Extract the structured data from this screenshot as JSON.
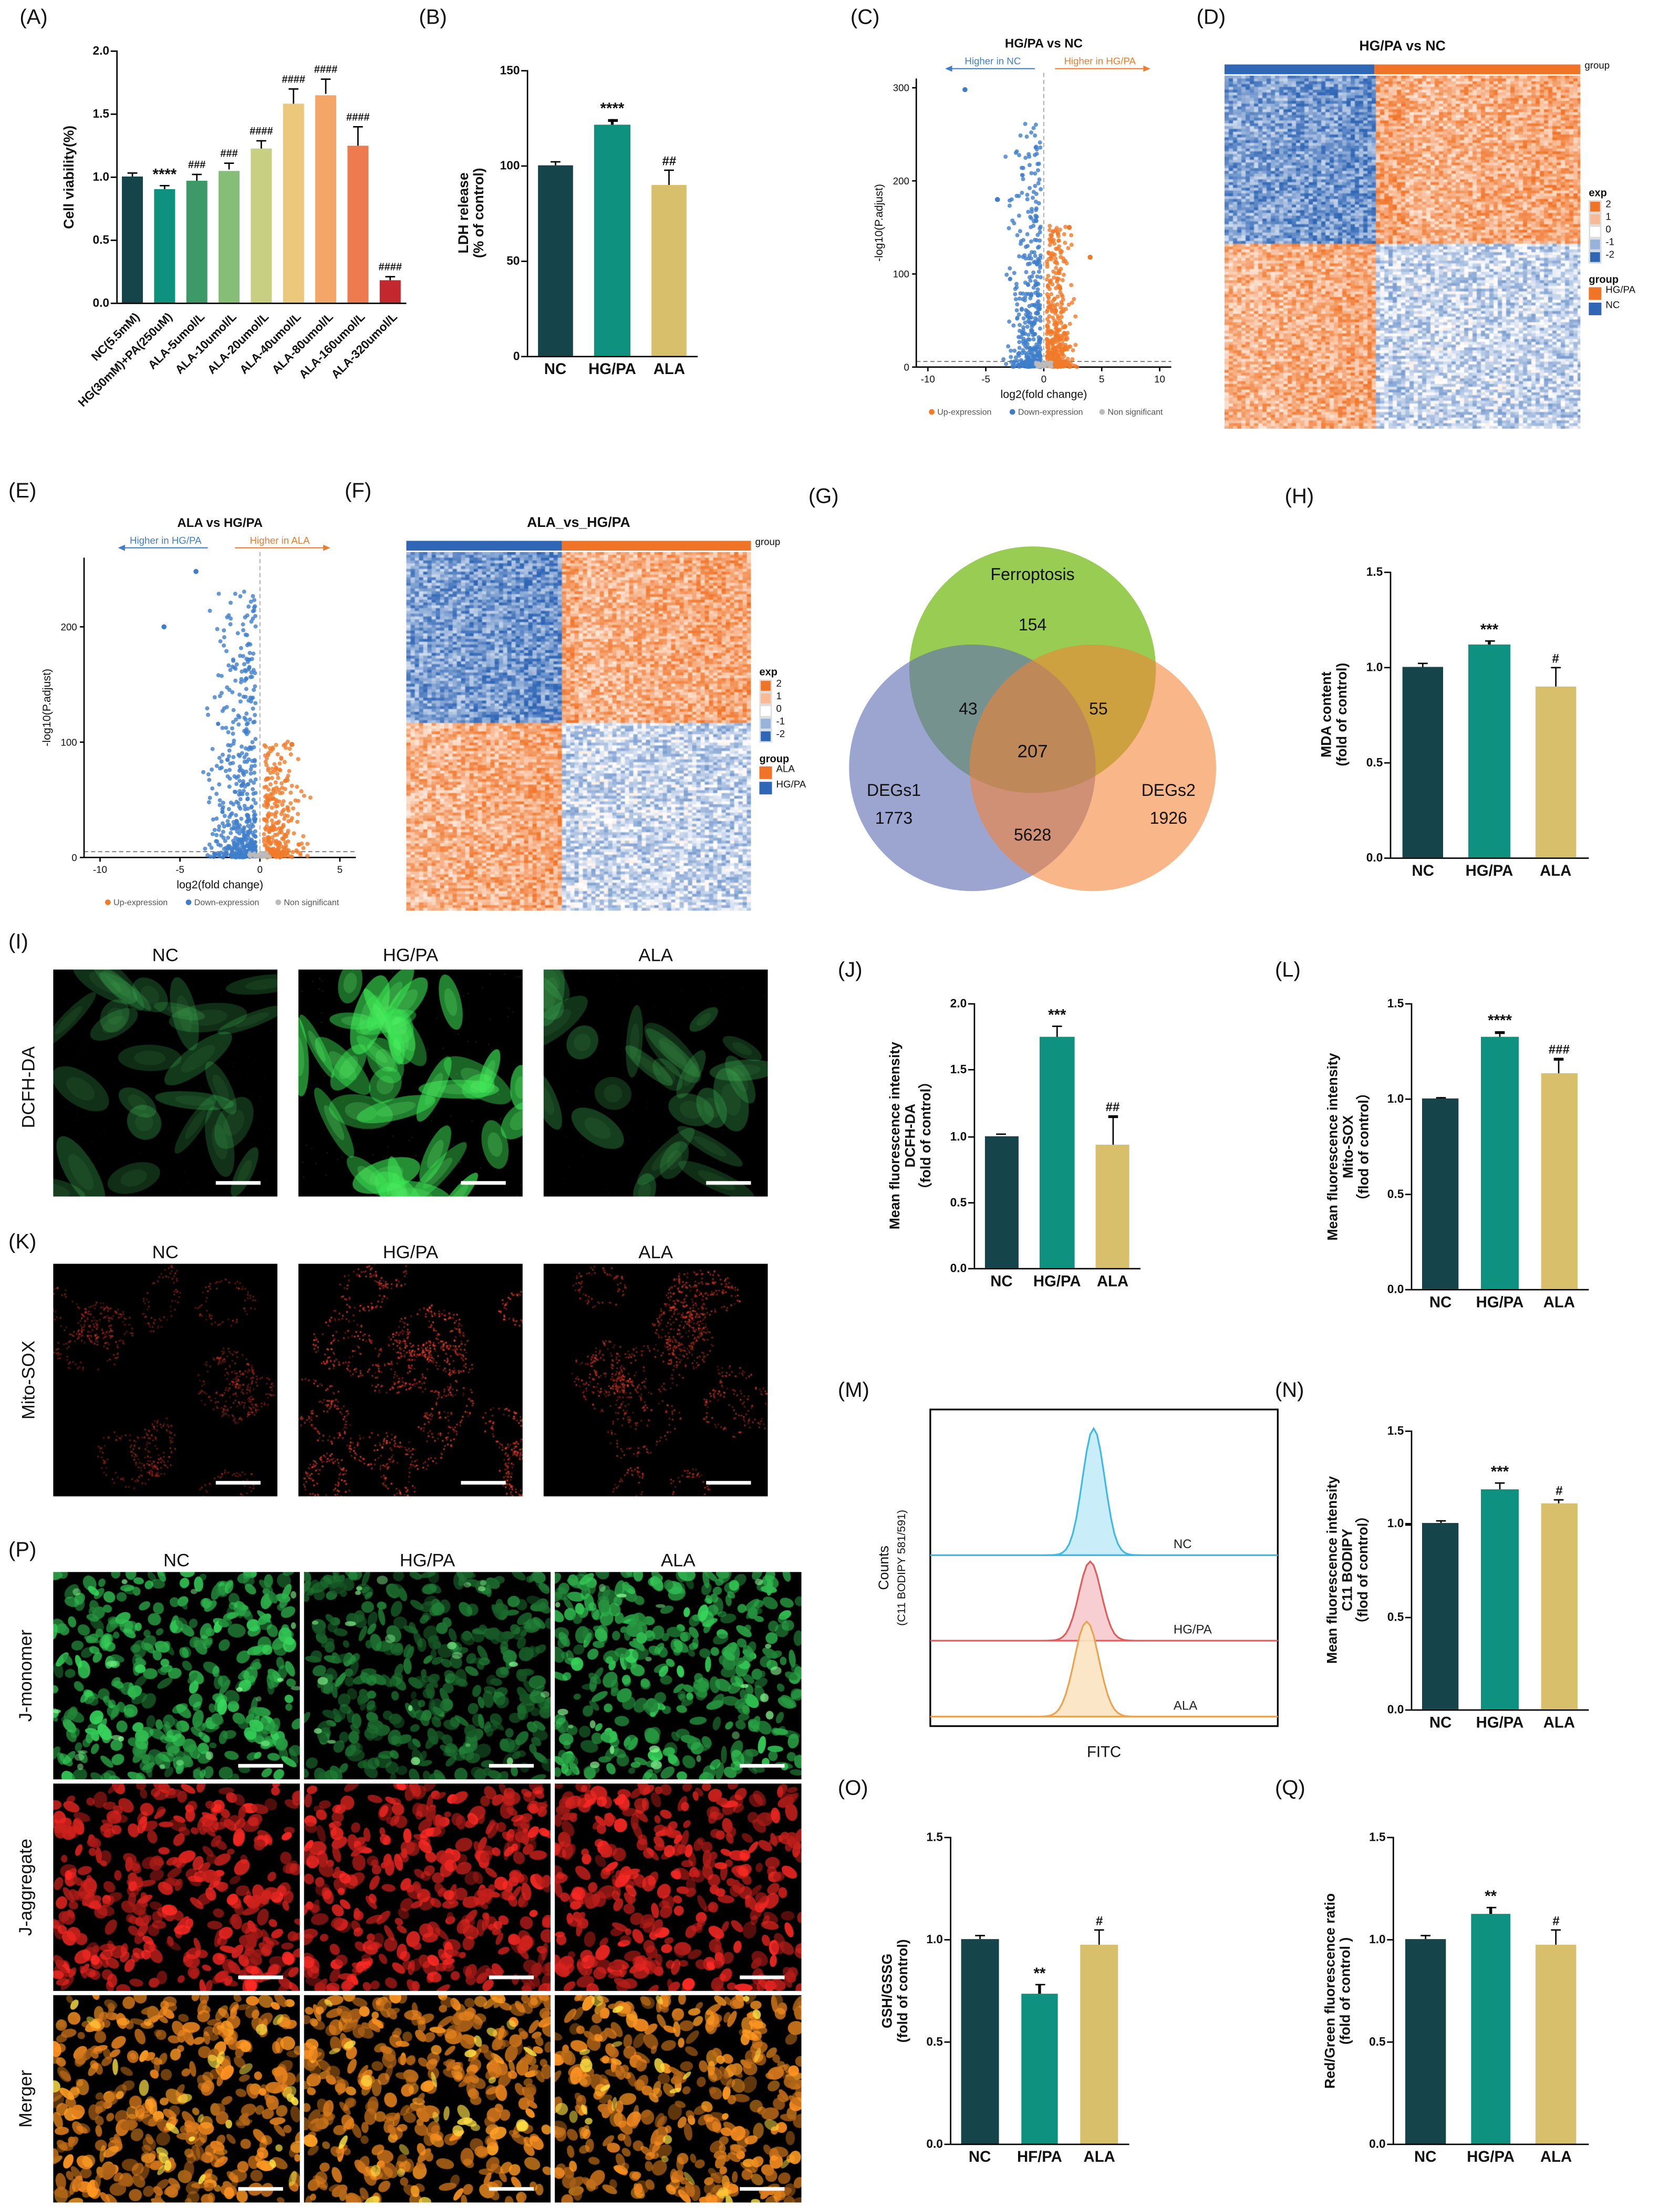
{
  "panel_labels": {
    "A": "(A)",
    "B": "(B)",
    "C": "(C)",
    "D": "(D)",
    "E": "(E)",
    "F": "(F)",
    "G": "(G)",
    "H": "(H)",
    "I": "(I)",
    "J": "(J)",
    "K": "(K)",
    "L": "(L)",
    "M": "(M)",
    "N": "(N)",
    "O": "(O)",
    "P": "(P)",
    "Q": "(Q)"
  },
  "colors": {
    "nc_bar": "#15454b",
    "hgpa_bar": "#0f9180",
    "ala_bar": "#d8bf6b",
    "up": "#f07b2a",
    "down": "#3f7ec9",
    "nonsig": "#bbbbbb",
    "heat_orange": "#f07428",
    "heat_blue": "#2f66b5"
  },
  "chart_data": [
    {
      "id": "viability",
      "type": "bar",
      "ylabel": "Cell viability(%)",
      "ylim": [
        0,
        2.0
      ],
      "yticks": [
        0,
        0.5,
        1.0,
        1.5,
        2.0
      ],
      "ytick_fmt": "1dp",
      "categories": [
        "NC(5.5mM)",
        "HG(30mM)+PA(250uM)",
        "ALA-5umol/L",
        "ALA-10umol/L",
        "ALA-20umol/L",
        "ALA-40umol/L",
        "ALA-80umol/L",
        "ALA-160umol/L",
        "ALA-320umol/L"
      ],
      "values": [
        1.0,
        0.9,
        0.97,
        1.05,
        1.22,
        1.58,
        1.65,
        1.25,
        0.18
      ],
      "errors": [
        0.03,
        0.03,
        0.05,
        0.06,
        0.07,
        0.12,
        0.13,
        0.15,
        0.03
      ],
      "annotations": [
        "",
        "****",
        "###",
        "###",
        "####",
        "####",
        "####",
        "####",
        "####"
      ],
      "colors": [
        "#15454b",
        "#0f9180",
        "#3d9a68",
        "#86bd77",
        "#c8cf82",
        "#ecc87d",
        "#f3a668",
        "#ee7a50",
        "#c2282e"
      ],
      "rotate_labels": true
    },
    {
      "id": "ldh",
      "type": "bar",
      "ylabel": "LDH release\n(% of control)",
      "ylim": [
        0,
        150
      ],
      "yticks": [
        0,
        50,
        100,
        150
      ],
      "ytick_fmt": "int",
      "categories": [
        "NC",
        "HG/PA",
        "ALA"
      ],
      "values": [
        100,
        121,
        90
      ],
      "errors": [
        2,
        3,
        8
      ],
      "annotations": [
        "",
        "****",
        "##"
      ],
      "colors": [
        "#15454b",
        "#0f9180",
        "#d8bf6b"
      ]
    },
    {
      "id": "volcano_c",
      "type": "volcano",
      "title": "HG/PA vs NC",
      "left_label": "Higher in NC",
      "right_label": "Higher in HG/PA",
      "xlabel": "log2(fold change)",
      "ylabel": "-log10(P.adjust)",
      "xlim": [
        -11,
        11
      ],
      "ylim": [
        0,
        310
      ],
      "xticks": [
        -10,
        -5,
        0,
        5,
        10
      ],
      "yticks": [
        0,
        100,
        200,
        300
      ],
      "legend": [
        "Up-expression",
        "Down-expression",
        "Non significant"
      ],
      "up_color": "#f07b2a",
      "down_color": "#3f7ec9",
      "n_down": 420,
      "n_up": 420,
      "down_ymax": 260,
      "up_ymax": 150,
      "hline": 6,
      "seed": 7,
      "outliers_down": [
        [
          -6.8,
          298
        ],
        [
          -4,
          180
        ]
      ],
      "outliers_up": [
        [
          2.2,
          150
        ],
        [
          4,
          118
        ]
      ]
    },
    {
      "id": "heatmap_d",
      "type": "heatmap",
      "title": "HG/PA vs NC",
      "group_label": "group",
      "exp_title": "exp",
      "group_title": "group",
      "exp_ticks": [
        "2",
        "1",
        "0",
        "-1",
        "-2"
      ],
      "anno_split": 0.42,
      "anno_colors": [
        "#2f66b5",
        "#f07428"
      ],
      "groups": [
        {
          "name": "HG/PA",
          "color": "#f07428"
        },
        {
          "name": "NC",
          "color": "#2f66b5"
        }
      ],
      "seed": 11
    },
    {
      "id": "volcano_e",
      "type": "volcano",
      "title": "ALA vs HG/PA",
      "left_label": "Higher in HG/PA",
      "right_label": "Higher in ALA",
      "xlabel": "log2(fold change)",
      "ylabel": "-log10(P.adjust)",
      "xlim": [
        -11,
        6
      ],
      "ylim": [
        0,
        260
      ],
      "xticks": [
        -10,
        -5,
        0,
        5
      ],
      "yticks": [
        0,
        100,
        200
      ],
      "legend": [
        "Up-expression",
        "Down-expression",
        "Non significant"
      ],
      "up_color": "#f07b2a",
      "down_color": "#3f7ec9",
      "n_down": 520,
      "n_up": 300,
      "down_ymax": 230,
      "up_ymax": 100,
      "hline": 5,
      "seed": 13,
      "outliers_down": [
        [
          -4,
          248
        ],
        [
          -6,
          200
        ]
      ],
      "outliers_up": [
        [
          2,
          98
        ]
      ]
    },
    {
      "id": "heatmap_f",
      "type": "heatmap",
      "title": "ALA_vs_HG/PA",
      "group_label": "group",
      "exp_title": "exp",
      "group_title": "group",
      "exp_ticks": [
        "2",
        "1",
        "0",
        "-1",
        "-2"
      ],
      "anno_split": 0.45,
      "anno_colors": [
        "#2f66b5",
        "#f07428"
      ],
      "groups": [
        {
          "name": "ALA",
          "color": "#f07428"
        },
        {
          "name": "HG/PA",
          "color": "#2f66b5"
        }
      ],
      "seed": 17
    },
    {
      "id": "venn",
      "type": "venn",
      "sets": [
        {
          "name": "Ferroptosis",
          "size": "154",
          "color": "#8dc63f"
        },
        {
          "name": "DEGs1",
          "size": "1773",
          "color": "#5f6eb3"
        },
        {
          "name": "DEGs2",
          "size": "1926",
          "color": "#f58233"
        }
      ],
      "overlaps": {
        "ferroptosis_degs1": "43",
        "ferroptosis_degs2": "55",
        "center": "207",
        "degs1_degs2": "5628"
      }
    },
    {
      "id": "mda",
      "type": "bar",
      "ylabel": "MDA content\n(fold of control)",
      "ylim": [
        0,
        1.5
      ],
      "yticks": [
        0,
        0.5,
        1.0,
        1.5
      ],
      "ytick_fmt": "1dp",
      "categories": [
        "NC",
        "HG/PA",
        "ALA"
      ],
      "values": [
        1.0,
        1.12,
        0.9
      ],
      "errors": [
        0.02,
        0.02,
        0.1
      ],
      "annotations": [
        "",
        "***",
        "#"
      ],
      "colors": [
        "#15454b",
        "#0f9180",
        "#d8bf6b"
      ]
    },
    {
      "id": "dcfh",
      "type": "bar",
      "ylabel": "Mean fluorescence intensity\nDCFH-DA\n（fold of control）",
      "ylim": [
        0,
        2.0
      ],
      "yticks": [
        0,
        0.5,
        1.0,
        1.5,
        2.0
      ],
      "ytick_fmt": "1dp",
      "categories": [
        "NC",
        "HG/PA",
        "ALA"
      ],
      "values": [
        1.0,
        1.75,
        0.93
      ],
      "errors": [
        0.02,
        0.08,
        0.22
      ],
      "annotations": [
        "",
        "***",
        "##"
      ],
      "colors": [
        "#15454b",
        "#0f9180",
        "#d8bf6b"
      ]
    },
    {
      "id": "mitosox",
      "type": "bar",
      "ylabel": "Mean fluorescence intensity\nMito-SOX\n（flod of control）",
      "ylim": [
        0,
        1.5
      ],
      "yticks": [
        0,
        0.5,
        1.0,
        1.5
      ],
      "ytick_fmt": "1dp",
      "categories": [
        "NC",
        "HG/PA",
        "ALA"
      ],
      "values": [
        1.0,
        1.32,
        1.13
      ],
      "errors": [
        0.01,
        0.03,
        0.08
      ],
      "annotations": [
        "",
        "****",
        "###"
      ],
      "colors": [
        "#15454b",
        "#0f9180",
        "#d8bf6b"
      ]
    },
    {
      "id": "flow",
      "type": "ridgeline",
      "ylabel": "Counts\n(C11 BODIPY 581/591)",
      "xlabel": "FITC",
      "series": [
        {
          "name": "NC",
          "color": "#3fb9e5",
          "fill": "#c3ebf8",
          "center": 0.47,
          "width": 0.045,
          "height": 0.4,
          "baseline": 0.46
        },
        {
          "name": "HG/PA",
          "color": "#e25c5c",
          "fill": "#f6cacd",
          "center": 0.46,
          "width": 0.045,
          "height": 0.25,
          "baseline": 0.73
        },
        {
          "name": "ALA",
          "color": "#eda24f",
          "fill": "#fbe4c1",
          "center": 0.45,
          "width": 0.05,
          "height": 0.3,
          "baseline": 0.97
        }
      ]
    },
    {
      "id": "c11",
      "type": "bar",
      "ylabel": "Mean fluorescence intensity\nC11 BODIPY\n（flod of control）",
      "ylim": [
        0,
        1.5
      ],
      "yticks": [
        0,
        0.5,
        1.0,
        1.5
      ],
      "ytick_fmt": "1dp",
      "categories": [
        "NC",
        "HG/PA",
        "ALA"
      ],
      "values": [
        1.0,
        1.18,
        1.11
      ],
      "errors": [
        0.02,
        0.04,
        0.02
      ],
      "annotations": [
        "",
        "***",
        "#"
      ],
      "colors": [
        "#15454b",
        "#0f9180",
        "#d8bf6b"
      ]
    },
    {
      "id": "gsh",
      "type": "bar",
      "ylabel": "GSH/GSSG\n(fold of control)",
      "ylim": [
        0,
        1.5
      ],
      "yticks": [
        0,
        0.5,
        1.0,
        1.5
      ],
      "ytick_fmt": "1dp",
      "categories": [
        "NC",
        "HF/PA",
        "ALA"
      ],
      "values": [
        1.0,
        0.73,
        0.97
      ],
      "errors": [
        0.02,
        0.05,
        0.08
      ],
      "annotations": [
        "",
        "**",
        "#"
      ],
      "colors": [
        "#15454b",
        "#0f9180",
        "#d8bf6b"
      ]
    },
    {
      "id": "redgreen",
      "type": "bar",
      "ylabel": "Red/Green fluorescence ratio\n(fold of control )",
      "ylim": [
        0,
        1.5
      ],
      "yticks": [
        0,
        0.5,
        1.0,
        1.5
      ],
      "ytick_fmt": "1dp",
      "categories": [
        "NC",
        "HG/PA",
        "ALA"
      ],
      "values": [
        1.0,
        1.12,
        0.97
      ],
      "errors": [
        0.02,
        0.04,
        0.08
      ],
      "annotations": [
        "",
        "**",
        "#"
      ],
      "colors": [
        "#15454b",
        "#0f9180",
        "#d8bf6b"
      ]
    }
  ],
  "microscopy": {
    "I": {
      "row_label": "DCFH-DA",
      "columns": [
        "NC",
        "HG/PA",
        "ALA"
      ],
      "channel": "green",
      "signals": [
        "low",
        "high",
        "low"
      ]
    },
    "K": {
      "row_label": "Mito-SOX",
      "columns": [
        "NC",
        "HG/PA",
        "ALA"
      ],
      "channel": "red-dots",
      "signals": [
        "low",
        "high",
        "medium"
      ]
    },
    "P": {
      "columns": [
        "NC",
        "HG/PA",
        "ALA"
      ],
      "rows": [
        {
          "label": "J-monomer",
          "channel": "green-dense",
          "signals": [
            "high",
            "medium",
            "high"
          ]
        },
        {
          "label": "J-aggregate",
          "channel": "red-dense",
          "signals": [
            "high",
            "high",
            "high"
          ]
        },
        {
          "label": "Merger",
          "channel": "merge-dense",
          "signals": [
            "high",
            "high",
            "high"
          ]
        }
      ]
    }
  }
}
